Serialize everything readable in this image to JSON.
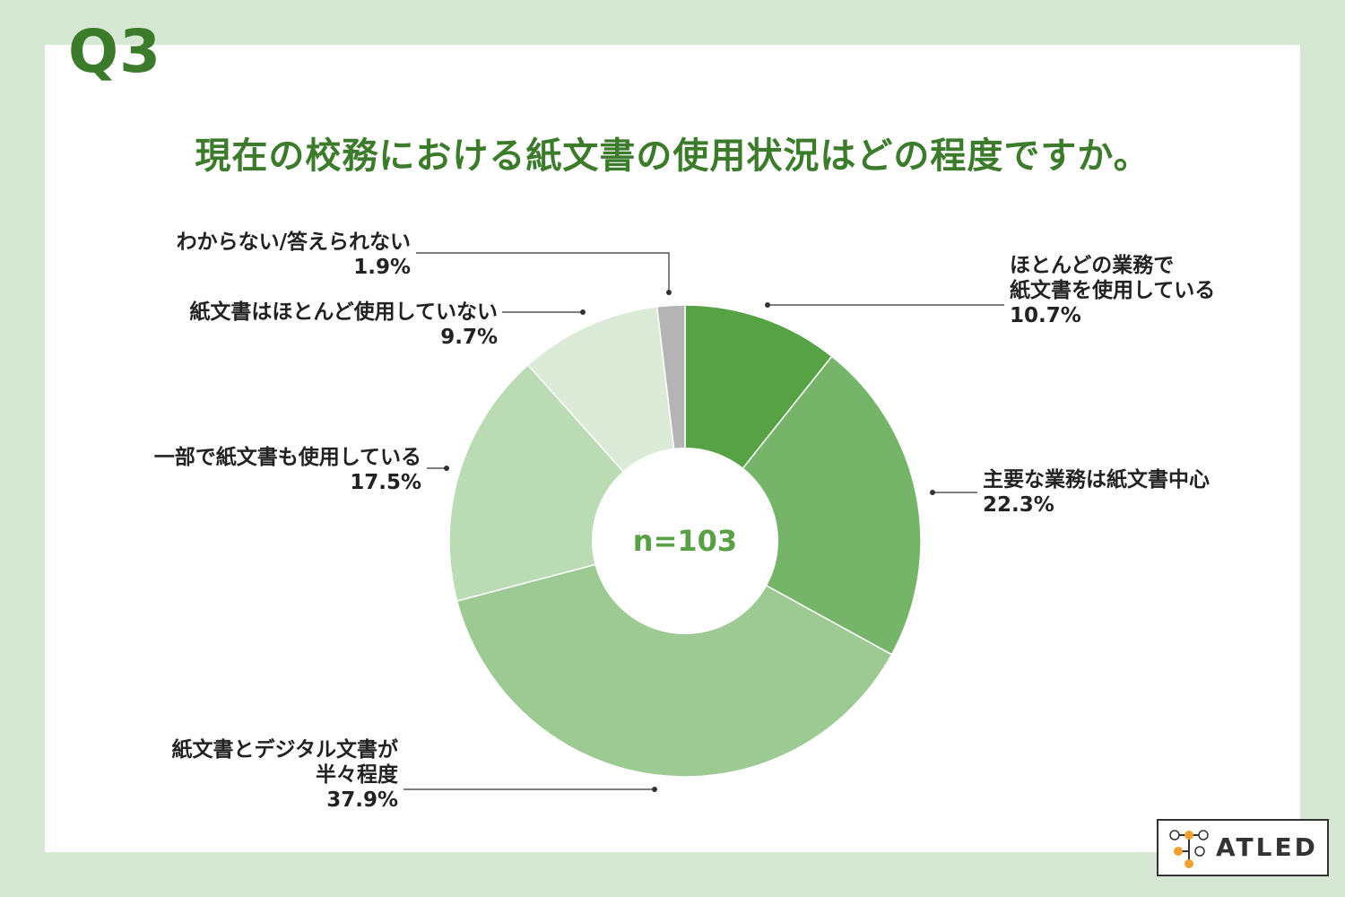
{
  "question_number": "Q3",
  "title": "現在の校務における紙文書の使用状況はどの程度ですか。",
  "brand": {
    "name": "ATLED"
  },
  "colors": {
    "background": "#d6e8d3",
    "title": "#3c7a2c",
    "center_text": "#5aa046"
  },
  "chart_data": {
    "type": "pie",
    "style": "donut",
    "center_label": "n=103",
    "slices": [
      {
        "label_lines": [
          "ほとんどの業務で",
          "紙文書を使用している"
        ],
        "value": 10.7,
        "value_text": "10.7%",
        "color": "#57a245"
      },
      {
        "label_lines": [
          "主要な業務は紙文書中心"
        ],
        "value": 22.3,
        "value_text": "22.3%",
        "color": "#76b46a"
      },
      {
        "label_lines": [
          "紙文書とデジタル文書が",
          "半々程度"
        ],
        "value": 37.9,
        "value_text": "37.9%",
        "color": "#9dc993"
      },
      {
        "label_lines": [
          "一部で紙文書も使用している"
        ],
        "value": 17.5,
        "value_text": "17.5%",
        "color": "#bbdbb5"
      },
      {
        "label_lines": [
          "紙文書はほとんど使用していない"
        ],
        "value": 9.7,
        "value_text": "9.7%",
        "color": "#dcebd8"
      },
      {
        "label_lines": [
          "わからない/答えられない"
        ],
        "value": 1.9,
        "value_text": "1.9%",
        "color": "#b4b4b4"
      }
    ]
  }
}
